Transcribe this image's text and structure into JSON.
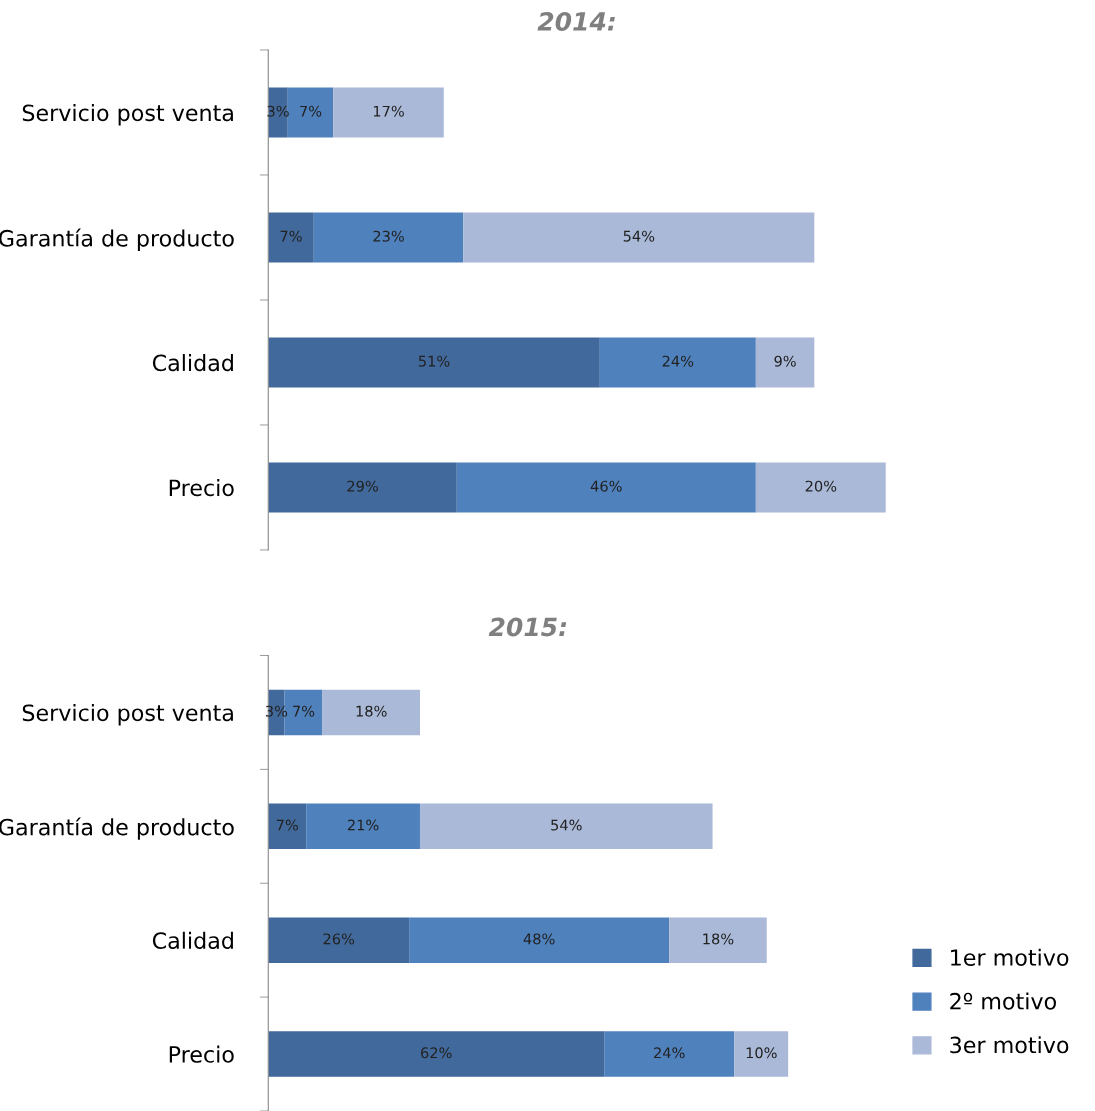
{
  "chart_data": [
    {
      "type": "bar",
      "orientation": "horizontal",
      "stacked": true,
      "title": "2014:",
      "categories": [
        "Servicio post venta",
        "Garantía de producto",
        "Calidad",
        "Precio"
      ],
      "tick_labels": "y",
      "grid": false,
      "series": [
        {
          "color": "#41699b",
          "values": [
            3,
            7,
            51,
            29
          ],
          "value_labels": [
            "3%",
            "7%",
            "51%",
            "29%"
          ]
        },
        {
          "color": "#4f81bd",
          "values": [
            7,
            23,
            24,
            46
          ],
          "value_labels": [
            "7%",
            "23%",
            "24%",
            "46%"
          ]
        },
        {
          "color": "#aab9d7",
          "values": [
            17,
            54,
            9,
            20
          ],
          "value_labels": [
            "17%",
            "54%",
            "9%",
            "20%"
          ]
        }
      ]
    },
    {
      "type": "bar",
      "orientation": "horizontal",
      "stacked": true,
      "title": "2015:",
      "categories": [
        "Servicio post venta",
        "Garantía de producto",
        "Calidad",
        "Precio"
      ],
      "tick_labels": "y",
      "grid": false,
      "legend": "lower right",
      "series": [
        {
          "name": "1er motivo",
          "color": "#41699b",
          "values": [
            3,
            7,
            26,
            62
          ],
          "value_labels": [
            "3%",
            "7%",
            "26%",
            "62%"
          ]
        },
        {
          "name": "2º motivo",
          "color": "#4f81bd",
          "values": [
            7,
            21,
            48,
            24
          ],
          "value_labels": [
            "7%",
            "21%",
            "48%",
            "24%"
          ]
        },
        {
          "name": "3er motivo",
          "color": "#aab9d7",
          "values": [
            18,
            54,
            18,
            10
          ],
          "value_labels": [
            "18%",
            "54%",
            "18%",
            "10%"
          ]
        }
      ]
    }
  ]
}
